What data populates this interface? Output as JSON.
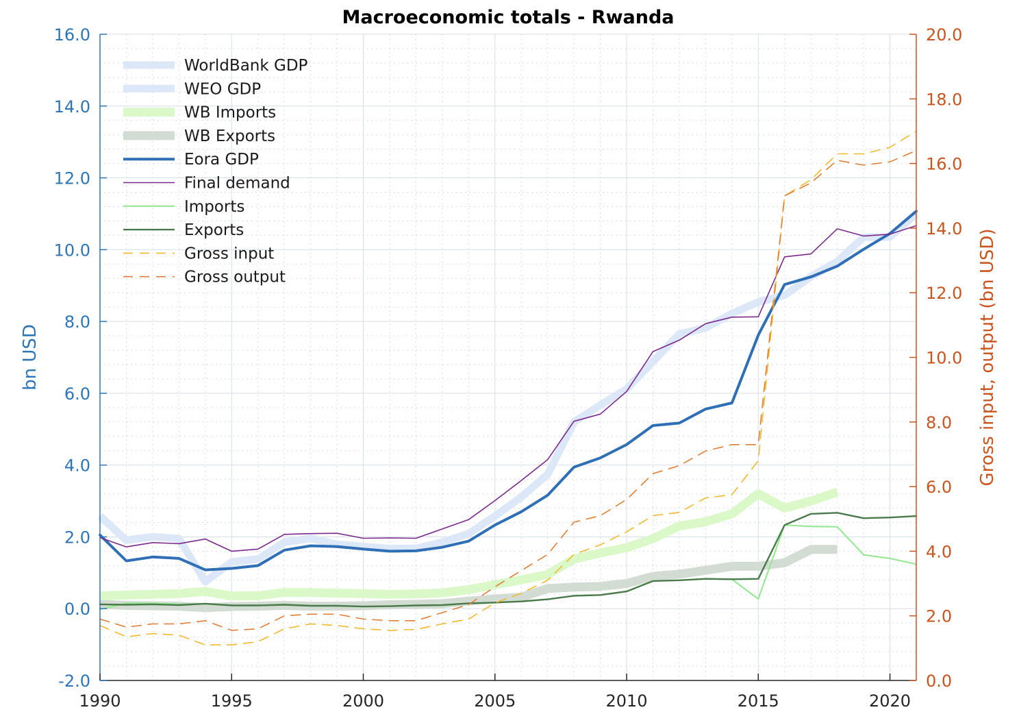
{
  "chart_data": {
    "type": "line",
    "title": "Macroeconomic totals - Rwanda",
    "ylabel": "bn USD",
    "ylabel_right": "Gross input, output (bn USD)",
    "xlim": [
      1990,
      2021
    ],
    "ylim": [
      -2.0,
      16.0
    ],
    "ylim_right": [
      0.0,
      20.0
    ],
    "x_ticks": [
      "1990",
      "1995",
      "2000",
      "2005",
      "2010",
      "2015",
      "2020"
    ],
    "y_ticks": [
      "-2.0",
      "0.0",
      "2.0",
      "4.0",
      "6.0",
      "8.0",
      "10.0",
      "12.0",
      "14.0",
      "16.0"
    ],
    "y_ticks_right": [
      "0.0",
      "2.0",
      "4.0",
      "6.0",
      "8.0",
      "10.0",
      "12.0",
      "14.0",
      "16.0",
      "18.0",
      "20.0"
    ],
    "grid": true,
    "legend_position": "top-left",
    "colors": {
      "left_axis": "#2e75b6",
      "right_axis": "#c8541e",
      "plot_border": "#262626",
      "grid": "#dde5ee"
    },
    "series": [
      {
        "name": "WorldBank GDP",
        "axis": "left",
        "color": "#dce7f8",
        "width": 11,
        "dash": "",
        "x": [
          1990,
          1991,
          1992,
          1993,
          1994,
          1995,
          1996,
          1997,
          1998,
          1999,
          2000,
          2001,
          2002,
          2003,
          2004,
          2005,
          2006,
          2007,
          2008,
          2009,
          2010,
          2011,
          2012,
          2013,
          2014,
          2015,
          2016,
          2017,
          2018,
          2019
        ],
        "y": [
          2.58,
          1.91,
          2.0,
          1.95,
          0.75,
          1.3,
          1.38,
          1.85,
          1.96,
          1.79,
          1.73,
          1.67,
          1.68,
          1.85,
          2.09,
          2.58,
          3.11,
          3.74,
          5.2,
          5.67,
          6.12,
          6.88,
          7.65,
          7.82,
          8.22,
          8.54,
          8.73,
          9.25,
          9.67,
          10.35
        ]
      },
      {
        "name": "WEO GDP",
        "axis": "left",
        "color": "#dce7f8",
        "width": 11,
        "dash": "",
        "x": [
          1990,
          1991,
          1992,
          1993,
          1994,
          1995,
          1996,
          1997,
          1998,
          1999,
          2000,
          2001,
          2002,
          2003,
          2004,
          2005,
          2006,
          2007,
          2008,
          2009,
          2010,
          2011,
          2012,
          2013,
          2014,
          2015,
          2016,
          2017,
          2018,
          2019,
          2020,
          2021
        ],
        "y": [
          2.58,
          1.91,
          2.0,
          1.95,
          0.75,
          1.3,
          1.38,
          1.85,
          1.96,
          1.79,
          1.73,
          1.67,
          1.68,
          1.85,
          2.09,
          2.58,
          3.11,
          3.74,
          5.2,
          5.67,
          6.12,
          6.88,
          7.65,
          7.82,
          8.22,
          8.54,
          8.73,
          9.25,
          9.67,
          10.35,
          10.35,
          11.0
        ]
      },
      {
        "name": "WB Imports",
        "axis": "left",
        "color": "#dbf8c8",
        "width": 13,
        "dash": "",
        "x": [
          1990,
          1991,
          1992,
          1993,
          1994,
          1995,
          1996,
          1997,
          1998,
          1999,
          2000,
          2001,
          2002,
          2003,
          2004,
          2005,
          2006,
          2007,
          2008,
          2009,
          2010,
          2011,
          2012,
          2013,
          2014,
          2015,
          2016,
          2017,
          2018
        ],
        "y": [
          0.35,
          0.38,
          0.4,
          0.42,
          0.48,
          0.35,
          0.36,
          0.45,
          0.45,
          0.43,
          0.42,
          0.4,
          0.41,
          0.44,
          0.53,
          0.67,
          0.8,
          0.95,
          1.38,
          1.55,
          1.7,
          1.95,
          2.3,
          2.42,
          2.64,
          3.2,
          2.8,
          3.0,
          3.25
        ]
      },
      {
        "name": "WB Exports",
        "axis": "left",
        "color": "#d3dcd2",
        "width": 13,
        "dash": "",
        "x": [
          1990,
          1991,
          1992,
          1993,
          1994,
          1995,
          1996,
          1997,
          1998,
          1999,
          2000,
          2001,
          2002,
          2003,
          2004,
          2005,
          2006,
          2007,
          2008,
          2009,
          2010,
          2011,
          2012,
          2013,
          2014,
          2015,
          2016,
          2017,
          2018
        ],
        "y": [
          0.12,
          0.09,
          0.08,
          0.07,
          0.03,
          0.06,
          0.07,
          0.09,
          0.07,
          0.07,
          0.08,
          0.11,
          0.12,
          0.14,
          0.21,
          0.27,
          0.32,
          0.56,
          0.6,
          0.62,
          0.7,
          0.9,
          0.96,
          1.07,
          1.18,
          1.18,
          1.28,
          1.65,
          1.65
        ]
      },
      {
        "name": "Eora GDP",
        "axis": "left",
        "color": "#2f6fb6",
        "width": 4,
        "dash": "",
        "x": [
          1990,
          1991,
          1992,
          1993,
          1994,
          1995,
          1996,
          1997,
          1998,
          1999,
          2000,
          2001,
          2002,
          2003,
          2004,
          2005,
          2006,
          2007,
          2008,
          2009,
          2010,
          2011,
          2012,
          2013,
          2014,
          2015,
          2016,
          2017,
          2018,
          2019,
          2020,
          2021
        ],
        "y": [
          2.05,
          1.33,
          1.44,
          1.4,
          1.08,
          1.12,
          1.2,
          1.63,
          1.75,
          1.73,
          1.66,
          1.6,
          1.61,
          1.71,
          1.88,
          2.33,
          2.7,
          3.16,
          3.94,
          4.2,
          4.57,
          5.1,
          5.17,
          5.56,
          5.73,
          7.62,
          9.03,
          9.24,
          9.54,
          10.01,
          10.45,
          11.07
        ]
      },
      {
        "name": "Final demand",
        "axis": "left",
        "color": "#7b2a8c",
        "width": 1.6,
        "dash": "",
        "x": [
          1990,
          1991,
          1992,
          1993,
          1994,
          1995,
          1996,
          1997,
          1998,
          1999,
          2000,
          2001,
          2002,
          2003,
          2004,
          2005,
          2006,
          2007,
          2008,
          2009,
          2010,
          2011,
          2012,
          2013,
          2014,
          2015,
          2016,
          2017,
          2018,
          2019,
          2020,
          2021
        ],
        "y": [
          1.98,
          1.72,
          1.84,
          1.81,
          1.94,
          1.6,
          1.66,
          2.07,
          2.09,
          2.1,
          1.96,
          1.97,
          1.96,
          2.22,
          2.48,
          3.01,
          3.57,
          4.15,
          5.22,
          5.42,
          6.05,
          7.16,
          7.48,
          7.94,
          8.12,
          8.13,
          9.8,
          9.88,
          10.58,
          10.38,
          10.43,
          10.67
        ]
      },
      {
        "name": "Imports",
        "axis": "left",
        "color": "#8fe88c",
        "width": 2,
        "dash": "",
        "x": [
          1990,
          1991,
          1992,
          1993,
          1994,
          1995,
          1996,
          1997,
          1998,
          1999,
          2000,
          2001,
          2002,
          2003,
          2004,
          2005,
          2006,
          2007,
          2008,
          2009,
          2010,
          2011,
          2012,
          2013,
          2014,
          2015,
          2016,
          2017,
          2018,
          2019,
          2020,
          2021
        ],
        "y": [
          -0.02,
          0.15,
          0.15,
          0.12,
          0.13,
          0.09,
          0.09,
          0.12,
          0.08,
          0.08,
          0.06,
          0.07,
          0.09,
          0.1,
          0.15,
          0.17,
          0.2,
          0.26,
          0.36,
          0.38,
          0.48,
          0.77,
          0.79,
          0.83,
          0.82,
          0.27,
          2.33,
          2.29,
          2.28,
          1.5,
          1.4,
          1.24
        ]
      },
      {
        "name": "Exports",
        "axis": "left",
        "color": "#4a7a4a",
        "width": 2.4,
        "dash": "",
        "x": [
          1990,
          1991,
          1992,
          1993,
          1994,
          1995,
          1996,
          1997,
          1998,
          1999,
          2000,
          2001,
          2002,
          2003,
          2004,
          2005,
          2006,
          2007,
          2008,
          2009,
          2010,
          2011,
          2012,
          2013,
          2014,
          2015,
          2016,
          2017,
          2018,
          2019,
          2020,
          2021
        ],
        "y": [
          0.12,
          0.11,
          0.12,
          0.1,
          0.14,
          0.09,
          0.09,
          0.11,
          0.08,
          0.08,
          0.06,
          0.07,
          0.09,
          0.1,
          0.15,
          0.17,
          0.2,
          0.26,
          0.36,
          0.38,
          0.48,
          0.77,
          0.79,
          0.83,
          0.82,
          0.83,
          2.33,
          2.64,
          2.67,
          2.52,
          2.54,
          2.58
        ]
      },
      {
        "name": "Gross input",
        "axis": "right",
        "color": "#f2b92c",
        "width": 1.6,
        "dash": "14,10",
        "x": [
          1990,
          1991,
          1992,
          1993,
          1994,
          1995,
          1996,
          1997,
          1998,
          1999,
          2000,
          2001,
          2002,
          2003,
          2004,
          2005,
          2006,
          2007,
          2008,
          2009,
          2010,
          2011,
          2012,
          2013,
          2014,
          2015,
          2016,
          2017,
          2018,
          2019,
          2020,
          2021
        ],
        "y": [
          1.7,
          1.35,
          1.45,
          1.4,
          1.1,
          1.1,
          1.2,
          1.6,
          1.75,
          1.7,
          1.6,
          1.55,
          1.58,
          1.75,
          1.9,
          2.4,
          2.7,
          3.1,
          3.9,
          4.2,
          4.6,
          5.1,
          5.2,
          5.65,
          5.75,
          6.8,
          15.0,
          15.5,
          16.3,
          16.3,
          16.5,
          17.0
        ]
      },
      {
        "name": "Gross output",
        "axis": "right",
        "color": "#e07e35",
        "width": 1.6,
        "dash": "14,10",
        "x": [
          1990,
          1991,
          1992,
          1993,
          1994,
          1995,
          1996,
          1997,
          1998,
          1999,
          2000,
          2001,
          2002,
          2003,
          2004,
          2005,
          2006,
          2007,
          2008,
          2009,
          2010,
          2011,
          2012,
          2013,
          2014,
          2015,
          2016,
          2017,
          2018,
          2019,
          2020,
          2021
        ],
        "y": [
          1.9,
          1.65,
          1.75,
          1.75,
          1.85,
          1.55,
          1.6,
          2.0,
          2.05,
          2.05,
          1.9,
          1.85,
          1.85,
          2.1,
          2.35,
          2.9,
          3.4,
          3.9,
          4.9,
          5.1,
          5.6,
          6.4,
          6.65,
          7.1,
          7.3,
          7.3,
          15.0,
          15.4,
          16.1,
          15.95,
          16.05,
          16.4
        ]
      }
    ]
  }
}
